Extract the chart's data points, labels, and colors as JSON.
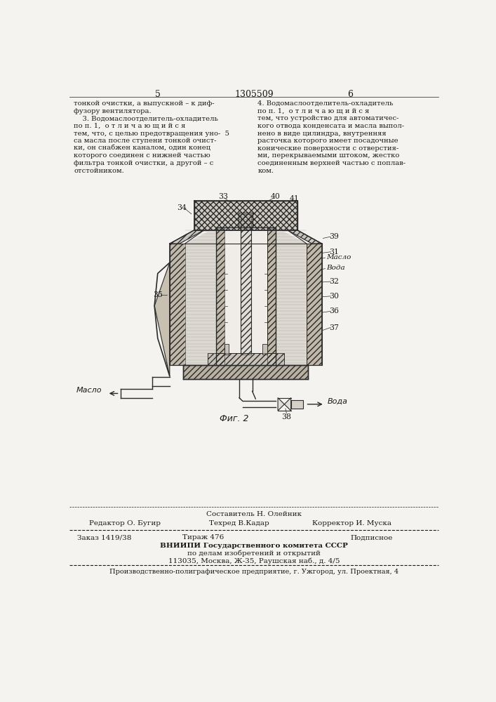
{
  "page_number_left": "5",
  "patent_number": "1305509",
  "page_number_right": "6",
  "bg_color": "#f5f3f0",
  "text_color": "#1a1a1a",
  "left_column_lines": [
    "тонкой очистки, а выпускной – к диф-",
    "фузору вентилятора.",
    "    3. Водомаслоотделитель-охладитель",
    "по п. 1,  о т л и ч а ю щ и й с я",
    "тем, что, с целью предотвращения уно-  5",
    "са масла после ступени тонкой очист-",
    "ки, он снабжен каналом, один конец",
    "которого соединен с нижней частью",
    "фильтра тонкой очистки, а другой – с",
    "отстойником."
  ],
  "right_column_lines": [
    "4. Водомаслоотделитель-охладитель",
    "по п. 1,  о т л и ч а ю щ и й с я",
    "тем, что устройство для автоматичес-",
    "кого отвода конденсата и масла выпол-",
    "нено в виде цилиндра, внутренняя",
    "расточка которого имеет посадочные",
    "конические поверхности с отверстия-",
    "ми, перекрываемыми штоком, жестко",
    "соединенным верхней частью с поплав-",
    "ком."
  ],
  "footer_sostavitel": "Составитель Н. Олейник",
  "footer_editor": "Редактор О. Бугир",
  "footer_tech": "Техред В.Кадар",
  "footer_corrector": "Корректор И. Муска",
  "footer_order": "Заказ 1419/38",
  "footer_tirazh": "Тираж 476",
  "footer_podpisnoe": "Подписное",
  "footer_vniipи": "ВНИИПИ Государственного комитета СССР",
  "footer_po_delam": "по делам изобретений и открытий",
  "footer_address": "113035, Москва, Ж-35, Раушская наб., д. 4/5",
  "footer_production": "Производственно-полиграфическое предприятие, г. Ужгород, ул. Проектная, 4"
}
